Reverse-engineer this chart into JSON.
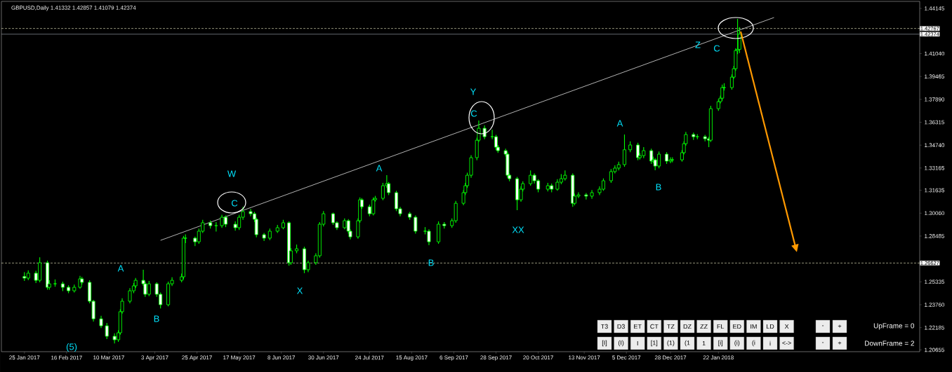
{
  "chart_data": {
    "type": "candlestick",
    "title": "GBPUSD,Daily 1.41332 1.42857 1.41079 1.42374",
    "color": "#00ff00",
    "x": [
      "2017-01-25",
      "2017-01-27",
      "2017-01-31",
      "2017-02-02",
      "2017-02-06",
      "2017-02-07",
      "2017-02-10",
      "2017-02-14",
      "2017-02-17",
      "2017-02-20",
      "2017-02-23",
      "2017-02-24",
      "2017-02-28",
      "2017-03-02",
      "2017-03-06",
      "2017-03-09",
      "2017-03-13",
      "2017-03-15",
      "2017-03-16",
      "2017-03-17",
      "2017-03-21",
      "2017-03-23",
      "2017-03-24",
      "2017-03-28",
      "2017-03-29",
      "2017-03-31",
      "2017-04-04",
      "2017-04-06",
      "2017-04-10",
      "2017-04-12",
      "2017-04-17",
      "2017-04-18",
      "2017-04-19",
      "2017-04-24",
      "2017-04-26",
      "2017-04-28",
      "2017-05-02",
      "2017-05-05",
      "2017-05-08",
      "2017-05-10",
      "2017-05-15",
      "2017-05-17",
      "2017-05-19",
      "2017-05-23",
      "2017-05-25",
      "2017-05-26",
      "2017-05-30",
      "2017-06-02",
      "2017-06-06",
      "2017-06-09",
      "2017-06-12",
      "2017-06-13",
      "2017-06-16",
      "2017-06-20",
      "2017-06-22",
      "2017-06-26",
      "2017-06-28",
      "2017-06-30",
      "2017-07-05",
      "2017-07-07",
      "2017-07-11",
      "2017-07-13",
      "2017-07-14",
      "2017-07-18",
      "2017-07-19",
      "2017-07-20",
      "2017-07-24",
      "2017-07-26",
      "2017-07-27",
      "2017-07-31",
      "2017-08-02",
      "2017-08-03",
      "2017-08-07",
      "2017-08-09",
      "2017-08-14",
      "2017-08-17",
      "2017-08-22",
      "2017-08-24",
      "2017-08-29",
      "2017-09-01",
      "2017-09-05",
      "2017-09-07",
      "2017-09-11",
      "2017-09-12",
      "2017-09-13",
      "2017-09-15",
      "2017-09-18",
      "2017-09-19",
      "2017-09-22",
      "2017-09-26",
      "2017-09-28",
      "2017-09-29",
      "2017-10-03",
      "2017-10-04",
      "2017-10-05",
      "2017-10-09",
      "2017-10-11",
      "2017-10-12",
      "2017-10-16",
      "2017-10-18",
      "2017-10-20",
      "2017-10-25",
      "2017-10-27",
      "2017-10-30",
      "2017-11-01",
      "2017-11-03",
      "2017-11-07",
      "2017-11-08",
      "2017-11-10",
      "2017-11-14",
      "2017-11-17",
      "2017-11-21",
      "2017-11-23",
      "2017-11-27",
      "2017-11-29",
      "2017-12-01",
      "2017-12-04",
      "2017-12-07",
      "2017-12-11",
      "2017-12-12",
      "2017-12-14",
      "2017-12-18",
      "2017-12-19",
      "2017-12-20",
      "2017-12-22",
      "2017-12-26",
      "2017-12-28",
      "2017-12-29",
      "2018-01-03",
      "2018-01-04",
      "2018-01-05",
      "2018-01-09",
      "2018-01-11",
      "2018-01-15",
      "2018-01-17",
      "2018-01-18",
      "2018-01-22",
      "2018-01-23",
      "2018-01-24",
      "2018-01-25",
      "2018-01-29",
      "2018-01-30",
      "2018-01-31",
      "2018-02-01",
      "2018-02-02"
    ],
    "ohlc": [
      [
        1.257,
        1.26,
        1.254,
        1.2559
      ],
      [
        1.2559,
        1.2612,
        1.2545,
        1.2593
      ],
      [
        1.2593,
        1.261,
        1.2525,
        1.2544
      ],
      [
        1.2544,
        1.2703,
        1.253,
        1.2665
      ],
      [
        1.2665,
        1.268,
        1.248,
        1.2496
      ],
      [
        1.2496,
        1.2545,
        1.248,
        1.252
      ],
      [
        1.252,
        1.255,
        1.25,
        1.252
      ],
      [
        1.252,
        1.2535,
        1.247,
        1.2496
      ],
      [
        1.2496,
        1.251,
        1.2455,
        1.2472
      ],
      [
        1.2472,
        1.2515,
        1.246,
        1.2496
      ],
      [
        1.2496,
        1.2575,
        1.2485,
        1.2554
      ],
      [
        1.2554,
        1.2568,
        1.2515,
        1.253
      ],
      [
        1.253,
        1.2545,
        1.2385,
        1.24
      ],
      [
        1.24,
        1.241,
        1.226,
        1.2279
      ],
      [
        1.2279,
        1.23,
        1.2215,
        1.2231
      ],
      [
        1.2231,
        1.225,
        1.214,
        1.2159
      ],
      [
        1.2159,
        1.218,
        1.211,
        1.2135
      ],
      [
        1.2135,
        1.22,
        1.212,
        1.2183
      ],
      [
        1.2183,
        1.2345,
        1.217,
        1.2328
      ],
      [
        1.2328,
        1.242,
        1.2315,
        1.24
      ],
      [
        1.24,
        1.249,
        1.2385,
        1.2472
      ],
      [
        1.2472,
        1.2525,
        1.2455,
        1.2506
      ],
      [
        1.2506,
        1.256,
        1.249,
        1.2544
      ],
      [
        1.2544,
        1.2617,
        1.2505,
        1.252
      ],
      [
        1.252,
        1.2535,
        1.243,
        1.2448
      ],
      [
        1.2448,
        1.254,
        1.2435,
        1.252
      ],
      [
        1.252,
        1.253,
        1.243,
        1.2448
      ],
      [
        1.2448,
        1.246,
        1.2351,
        1.2376
      ],
      [
        1.2376,
        1.2535,
        1.2365,
        1.252
      ],
      [
        1.252,
        1.2565,
        1.2505,
        1.2544
      ],
      [
        1.2544,
        1.259,
        1.253,
        1.2568
      ],
      [
        1.2568,
        1.285,
        1.255,
        1.2834
      ],
      [
        1.2834,
        1.286,
        1.28,
        1.2834
      ],
      [
        1.2834,
        1.2845,
        1.278,
        1.2809
      ],
      [
        1.2809,
        1.29,
        1.2795,
        1.2882
      ],
      [
        1.2882,
        1.296,
        1.287,
        1.294
      ],
      [
        1.294,
        1.2955,
        1.29,
        1.292
      ],
      [
        1.292,
        1.2945,
        1.288,
        1.292
      ],
      [
        1.292,
        1.2995,
        1.2905,
        1.2978
      ],
      [
        1.2978,
        1.299,
        1.291,
        1.293
      ],
      [
        1.293,
        1.295,
        1.2885,
        1.2906
      ],
      [
        1.2906,
        1.2995,
        1.289,
        1.2978
      ],
      [
        1.2978,
        1.305,
        1.296,
        1.3017
      ],
      [
        1.3017,
        1.3035,
        1.2985,
        1.3002
      ],
      [
        1.3002,
        1.3015,
        1.2945,
        1.2964
      ],
      [
        1.2964,
        1.2975,
        1.284,
        1.2858
      ],
      [
        1.2858,
        1.287,
        1.2815,
        1.2834
      ],
      [
        1.2834,
        1.29,
        1.282,
        1.2882
      ],
      [
        1.2882,
        1.2925,
        1.287,
        1.2906
      ],
      [
        1.2906,
        1.296,
        1.2895,
        1.294
      ],
      [
        1.294,
        1.295,
        1.2645,
        1.2665
      ],
      [
        1.2665,
        1.2765,
        1.265,
        1.2747
      ],
      [
        1.2747,
        1.279,
        1.273,
        1.2761
      ],
      [
        1.2761,
        1.2775,
        1.2593,
        1.2617
      ],
      [
        1.2617,
        1.268,
        1.26,
        1.2665
      ],
      [
        1.2665,
        1.273,
        1.265,
        1.2713
      ],
      [
        1.2713,
        1.2945,
        1.27,
        1.293
      ],
      [
        1.293,
        1.302,
        1.2915,
        1.3002
      ],
      [
        1.3002,
        1.301,
        1.2925,
        1.294
      ],
      [
        1.294,
        1.295,
        1.289,
        1.2906
      ],
      [
        1.2906,
        1.297,
        1.2895,
        1.2954
      ],
      [
        1.2954,
        1.2965,
        1.2865,
        1.2882
      ],
      [
        1.2882,
        1.2895,
        1.2825,
        1.2843
      ],
      [
        1.2843,
        1.297,
        1.283,
        1.2954
      ],
      [
        1.2954,
        1.3115,
        1.294,
        1.3098
      ],
      [
        1.3098,
        1.311,
        1.3035,
        1.305
      ],
      [
        1.305,
        1.3065,
        1.2985,
        1.3002
      ],
      [
        1.3002,
        1.3115,
        1.299,
        1.3098
      ],
      [
        1.3098,
        1.3125,
        1.3085,
        1.3108
      ],
      [
        1.3108,
        1.3215,
        1.3095,
        1.3195
      ],
      [
        1.3195,
        1.3267,
        1.318,
        1.3209
      ],
      [
        1.3209,
        1.322,
        1.313,
        1.3147
      ],
      [
        1.3147,
        1.316,
        1.302,
        1.3036
      ],
      [
        1.3036,
        1.305,
        1.2985,
        1.3002
      ],
      [
        1.3002,
        1.3015,
        1.296,
        1.2978
      ],
      [
        1.2978,
        1.299,
        1.2865,
        1.2882
      ],
      [
        1.2882,
        1.291,
        1.286,
        1.2882
      ],
      [
        1.2882,
        1.2895,
        1.2785,
        1.2809
      ],
      [
        1.2809,
        1.295,
        1.2795,
        1.293
      ],
      [
        1.293,
        1.2945,
        1.29,
        1.292
      ],
      [
        1.292,
        1.297,
        1.2905,
        1.2954
      ],
      [
        1.2954,
        1.309,
        1.294,
        1.3074
      ],
      [
        1.3074,
        1.3165,
        1.306,
        1.3147
      ],
      [
        1.3147,
        1.3215,
        1.313,
        1.3195
      ],
      [
        1.3195,
        1.3285,
        1.318,
        1.3267
      ],
      [
        1.3267,
        1.3405,
        1.325,
        1.3388
      ],
      [
        1.3388,
        1.3525,
        1.337,
        1.3508
      ],
      [
        1.3508,
        1.3643,
        1.3495,
        1.359
      ],
      [
        1.359,
        1.361,
        1.3515,
        1.3532
      ],
      [
        1.3532,
        1.358,
        1.3515,
        1.3532
      ],
      [
        1.3532,
        1.3545,
        1.344,
        1.346
      ],
      [
        1.346,
        1.3475,
        1.342,
        1.3436
      ],
      [
        1.3436,
        1.345,
        1.3395,
        1.3412
      ],
      [
        1.3412,
        1.3425,
        1.325,
        1.3267
      ],
      [
        1.3267,
        1.328,
        1.3225,
        1.3243
      ],
      [
        1.3243,
        1.3255,
        1.3026,
        1.3098
      ],
      [
        1.3098,
        1.319,
        1.3085,
        1.3171
      ],
      [
        1.3171,
        1.3225,
        1.3155,
        1.3209
      ],
      [
        1.3209,
        1.33,
        1.3195,
        1.3267
      ],
      [
        1.3267,
        1.328,
        1.321,
        1.3229
      ],
      [
        1.3229,
        1.324,
        1.315,
        1.3171
      ],
      [
        1.3171,
        1.3215,
        1.3155,
        1.3195
      ],
      [
        1.3195,
        1.321,
        1.315,
        1.3171
      ],
      [
        1.3171,
        1.324,
        1.316,
        1.3219
      ],
      [
        1.3219,
        1.3275,
        1.3205,
        1.3243
      ],
      [
        1.3243,
        1.33,
        1.323,
        1.3267
      ],
      [
        1.3267,
        1.328,
        1.305,
        1.3074
      ],
      [
        1.3074,
        1.314,
        1.306,
        1.3123
      ],
      [
        1.3123,
        1.315,
        1.311,
        1.3132
      ],
      [
        1.3132,
        1.3145,
        1.31,
        1.3123
      ],
      [
        1.3123,
        1.3165,
        1.3105,
        1.3147
      ],
      [
        1.3147,
        1.319,
        1.313,
        1.3171
      ],
      [
        1.3171,
        1.3245,
        1.316,
        1.3229
      ],
      [
        1.3229,
        1.331,
        1.3215,
        1.3292
      ],
      [
        1.3292,
        1.3335,
        1.328,
        1.3316
      ],
      [
        1.3316,
        1.336,
        1.33,
        1.334
      ],
      [
        1.334,
        1.3547,
        1.3325,
        1.3442
      ],
      [
        1.3442,
        1.35,
        1.3425,
        1.3475
      ],
      [
        1.3475,
        1.349,
        1.337,
        1.3388
      ],
      [
        1.3388,
        1.342,
        1.3375,
        1.3402
      ],
      [
        1.3402,
        1.346,
        1.3385,
        1.3436
      ],
      [
        1.3436,
        1.345,
        1.3345,
        1.3364
      ],
      [
        1.3364,
        1.3395,
        1.335,
        1.3373
      ],
      [
        1.3373,
        1.3385,
        1.3301,
        1.333
      ],
      [
        1.333,
        1.343,
        1.3315,
        1.3412
      ],
      [
        1.3412,
        1.3425,
        1.3345,
        1.3364
      ],
      [
        1.3364,
        1.339,
        1.335,
        1.3373
      ],
      [
        1.3373,
        1.339,
        1.3355,
        1.3373
      ],
      [
        1.3373,
        1.344,
        1.336,
        1.3422
      ],
      [
        1.3422,
        1.35,
        1.341,
        1.3484
      ],
      [
        1.3484,
        1.3565,
        1.347,
        1.3547
      ],
      [
        1.3547,
        1.356,
        1.351,
        1.3532
      ],
      [
        1.3532,
        1.355,
        1.3515,
        1.3532
      ],
      [
        1.3532,
        1.3545,
        1.35,
        1.3518
      ],
      [
        1.3518,
        1.353,
        1.346,
        1.3508
      ],
      [
        1.3508,
        1.3745,
        1.3495,
        1.3725
      ],
      [
        1.3725,
        1.379,
        1.371,
        1.3773
      ],
      [
        1.3773,
        1.3815,
        1.376,
        1.3797
      ],
      [
        1.3797,
        1.389,
        1.378,
        1.387
      ],
      [
        1.387,
        1.39,
        1.385,
        1.387
      ],
      [
        1.387,
        1.396,
        1.3855,
        1.3942
      ],
      [
        1.3942,
        1.402,
        1.393,
        1.4
      ],
      [
        1.4,
        1.414,
        1.3985,
        1.4125
      ],
      [
        1.4125,
        1.4342,
        1.41,
        1.4133
      ],
      [
        1.41332,
        1.42857,
        1.41079,
        1.42374
      ]
    ],
    "series": [
      {
        "type": "line",
        "x": [
          "2017-04-06",
          "2018-02-20"
        ],
        "values": [
          1.2819,
          1.4352
        ],
        "color": "#ffffff"
      }
    ],
    "xlim": [
      "2017-01-13",
      "2018-05-07"
    ],
    "xticks": [
      {
        "value": "2017-01-25",
        "label": "25 Jan 2017"
      },
      {
        "value": "2017-02-16",
        "label": "16 Feb 2017"
      },
      {
        "value": "2017-03-10",
        "label": "10 Mar 2017"
      },
      {
        "value": "2017-04-03",
        "label": "3 Apr 2017"
      },
      {
        "value": "2017-04-25",
        "label": "25 Apr 2017"
      },
      {
        "value": "2017-05-17",
        "label": "17 May 2017"
      },
      {
        "value": "2017-06-08",
        "label": "8 Jun 2017"
      },
      {
        "value": "2017-06-30",
        "label": "30 Jun 2017"
      },
      {
        "value": "2017-07-24",
        "label": "24 Jul 2017"
      },
      {
        "value": "2017-08-15",
        "label": "15 Aug 2017"
      },
      {
        "value": "2017-09-06",
        "label": "6 Sep 2017"
      },
      {
        "value": "2017-09-28",
        "label": "28 Sep 2017"
      },
      {
        "value": "2017-10-20",
        "label": "20 Oct 2017"
      },
      {
        "value": "2017-11-13",
        "label": "13 Nov 2017"
      },
      {
        "value": "2017-12-05",
        "label": "5 Dec 2017"
      },
      {
        "value": "2017-12-28",
        "label": "28 Dec 2017"
      },
      {
        "value": "2018-01-22",
        "label": "22 Jan 2018"
      }
    ],
    "ylim": [
      1.2053,
      1.4463
    ],
    "yticks": [
      1.44145,
      {
        "value": 1.4104,
        "label": "1.41040"
      },
      1.39465,
      {
        "value": 1.3789,
        "label": "1.37890"
      },
      1.36315,
      {
        "value": 1.3474,
        "label": "1.34740"
      },
      1.33165,
      1.31635,
      {
        "value": 1.3006,
        "label": "1.30060"
      },
      1.28485,
      1.25335,
      {
        "value": 1.2376,
        "label": "1.23760"
      },
      1.22185,
      1.20655
    ],
    "ref_lines": [
      {
        "axis": "y",
        "value": 1.42767,
        "label": "1.42767",
        "color": "#f0f0c8",
        "line_style": "dashed"
      },
      {
        "axis": "y",
        "value": 1.42374,
        "label": "1.42374",
        "color": "#a8b0b8",
        "line_style": "solid"
      },
      {
        "axis": "y",
        "value": 1.26627,
        "label": "1.26627",
        "color": "#f0f0c8",
        "line_style": "dashed"
      }
    ],
    "annotations": [
      "A",
      "B",
      "W",
      "C",
      "X",
      "A",
      "B",
      "Y",
      "C",
      "XX",
      "A",
      "B",
      "Z",
      "C",
      "(5)",
      "T3",
      "D3",
      "ET",
      "CT",
      "TZ",
      "DZ",
      "ZZ",
      "FL",
      "ED",
      "IM",
      "LD",
      "X",
      "-",
      "+",
      "UpFrame = 0",
      "[I]",
      "(I)",
      "I",
      "[1]",
      "(1)",
      "(1",
      "1",
      "[i]",
      "(i)",
      "(i",
      "i",
      "<->",
      "-",
      "+",
      "DownFrame = 2"
    ]
  }
}
